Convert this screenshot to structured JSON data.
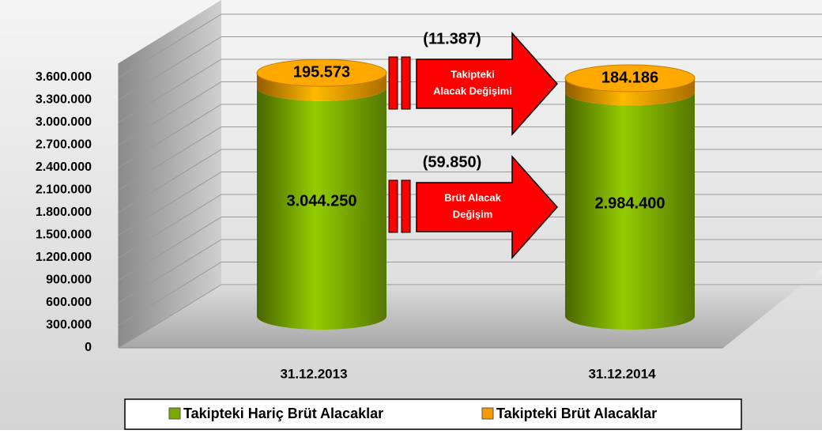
{
  "chart_data": {
    "type": "bar",
    "stacked": true,
    "categories": [
      "31.12.2013",
      "31.12.2014"
    ],
    "series": [
      {
        "name": "Takipteki Hariç Brüt Alacaklar",
        "color": "#7aaa00",
        "values": [
          3044250,
          2984400
        ],
        "value_labels": [
          "3.044.250",
          "2.984.400"
        ]
      },
      {
        "name": "Takipteki Brüt Alacaklar",
        "color": "#f59a00",
        "values": [
          195573,
          184186
        ],
        "value_labels": [
          "195.573",
          "184.186"
        ]
      }
    ],
    "ylim": [
      0,
      3600000
    ],
    "yticks": [
      0,
      {
        "value": 300000,
        "label": "300.000"
      },
      {
        "value": 600000,
        "label": "600.000"
      },
      {
        "value": 900000,
        "label": "900.000"
      },
      {
        "value": 1200000,
        "label": "1.200.000"
      },
      {
        "value": 1500000,
        "label": "1.500.000"
      },
      {
        "value": 1800000,
        "label": "1.800.000"
      },
      {
        "value": 2100000,
        "label": "2.100.000"
      },
      {
        "value": 2400000,
        "label": "2.400.000"
      },
      {
        "value": 2700000,
        "label": "2.700.000"
      },
      {
        "value": 3000000,
        "label": "3.000.000"
      },
      {
        "value": 3300000,
        "label": "3.300.000"
      },
      {
        "value": 3600000,
        "label": "3.600.000"
      }
    ],
    "grid": true,
    "annotations": [
      {
        "text": "(11.387)",
        "arrow_text": [
          "Takipteki",
          "Alacak Değişimi"
        ]
      },
      {
        "text": "(59.850)",
        "arrow_text": [
          "Brüt Alacak",
          "Değişim"
        ]
      }
    ],
    "legend": "bottom"
  }
}
